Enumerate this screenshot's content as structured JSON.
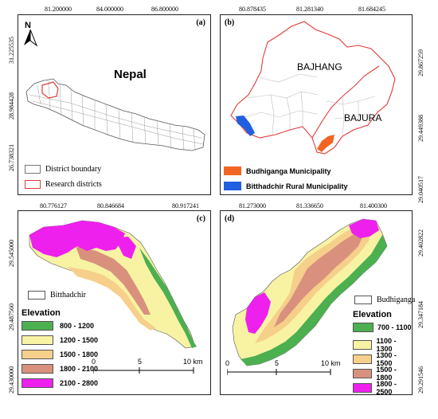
{
  "panel_a": {
    "label": "(a)",
    "top_ticks": [
      "81.200000",
      "84.000000",
      "86.800000"
    ],
    "left_ticks": [
      "31.225535",
      "28.984428",
      "26.738321"
    ],
    "country_name": "Nepal",
    "legend": [
      {
        "label": "District boundary",
        "swatch": "#ffffff",
        "border": "#777777"
      },
      {
        "label": "Research districts",
        "swatch": "#ffffff",
        "border": "#e23a3a"
      }
    ]
  },
  "panel_b": {
    "label": "(b)",
    "top_ticks": [
      "80.878435",
      "81.281340",
      "81.684245"
    ],
    "right_ticks": [
      "29.867259",
      "29.449388",
      "29.040517"
    ],
    "region_labels": [
      "BAJHANG",
      "BAJURA"
    ],
    "legend": [
      {
        "label": "Budhiganga Municipality",
        "swatch": "#f26522"
      },
      {
        "label": "Bitthadchir Rural Municipality",
        "swatch": "#1f5fe0"
      }
    ]
  },
  "panel_c": {
    "label": "(c)",
    "top_ticks": [
      "80.776127",
      "80.846684",
      "80.917241"
    ],
    "left_ticks": [
      "29.545000",
      "29.487560",
      "29.430000"
    ],
    "name_box": "Bitthadchir",
    "elevation_title": "Elevation",
    "elevation_classes": [
      {
        "label": "800 - 1200",
        "color": "#4caf50"
      },
      {
        "label": "1200 - 1500",
        "color": "#f7f3a3"
      },
      {
        "label": "1500 - 1800",
        "color": "#f6cf8a"
      },
      {
        "label": "1800 - 2100",
        "color": "#d9917d"
      },
      {
        "label": "2100 - 2800",
        "color": "#ee20ee"
      }
    ],
    "scale_labels": [
      "0",
      "5",
      "10 km"
    ]
  },
  "panel_d": {
    "label": "(d)",
    "top_ticks": [
      "81.273000",
      "81.336650",
      "81.400300"
    ],
    "right_ticks": [
      "29.402822",
      "29.347184",
      "29.291546"
    ],
    "name_box": "Budhiganga",
    "elevation_title": "Elevation",
    "elevation_classes": [
      {
        "label": "700 - 1100",
        "color": "#4caf50"
      },
      {
        "label": "1100 - 1300",
        "color": "#f7f3a3"
      },
      {
        "label": "1300 - 1500",
        "color": "#f6cf8a"
      },
      {
        "label": "1500 - 1800",
        "color": "#d9917d"
      },
      {
        "label": "1800 - 2500",
        "color": "#ee20ee"
      }
    ],
    "scale_labels": [
      "0",
      "5",
      "10 km"
    ]
  }
}
